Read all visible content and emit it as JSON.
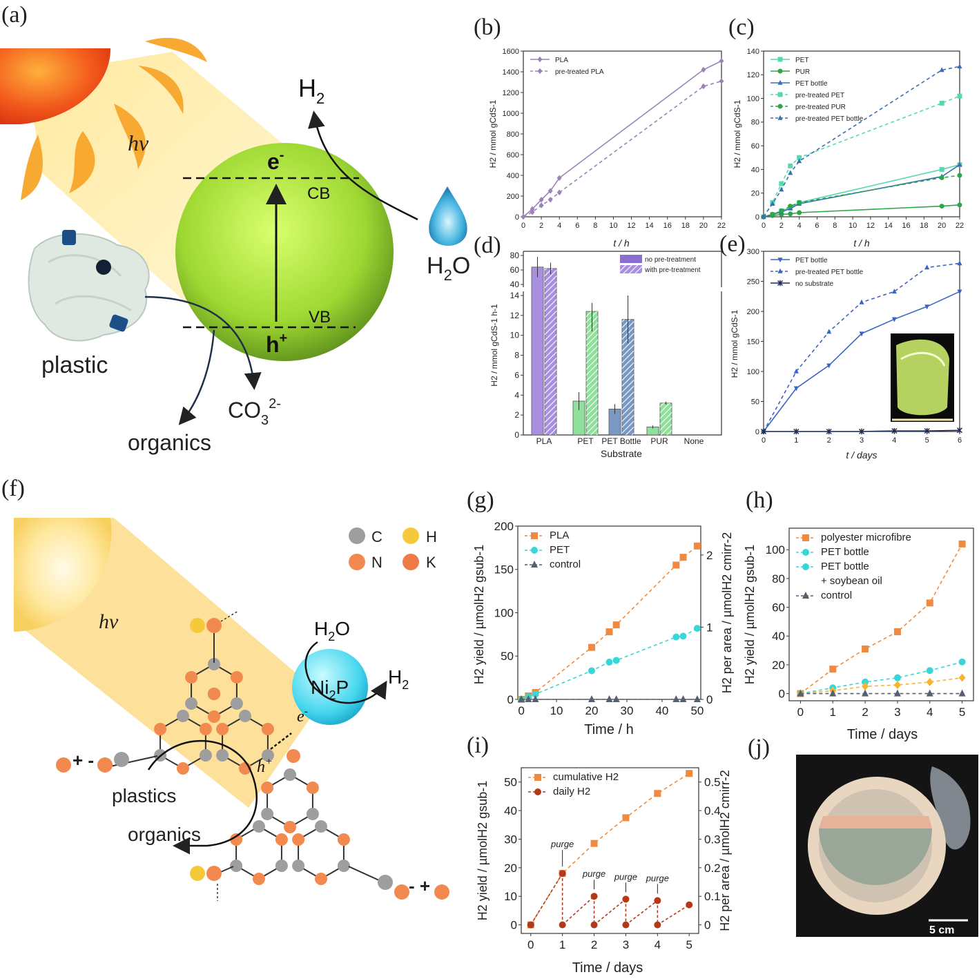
{
  "panels": {
    "a": {
      "label": "(a)",
      "hv": "hv",
      "e": "e",
      "e_sup": "-",
      "cb": "CB",
      "vb": "VB",
      "h": "h",
      "h_sup": "+",
      "h2": "H",
      "h2_sub": "2",
      "h2o": "H",
      "h2o_sub": "2",
      "h2o_o": "O",
      "plastic": "plastic",
      "co3": "CO",
      "co3_sub": "3",
      "co3_sup": "2-",
      "organics": "organics"
    },
    "f": {
      "label": "(f)",
      "hv": "hv",
      "legend": [
        {
          "letter": "C",
          "color": "#9e9e9e"
        },
        {
          "letter": "H",
          "color": "#f5c93a"
        },
        {
          "letter": "N",
          "color": "#f28a4f"
        },
        {
          "letter": "K",
          "color": "#ee7a46"
        }
      ],
      "h2o": "H",
      "h2o_sub": "2",
      "h2o_o": "O",
      "ni2p": "Ni",
      "ni2p_sub": "2",
      "ni2p_p": "P",
      "h2": "H",
      "h2_sub": "2",
      "e": "e",
      "e_sup": "-",
      "h": "h",
      "h_sup": "+",
      "plastics": "plastics",
      "organics": "organics",
      "plus_minus_left": "+ -",
      "minus_plus_right": "- +"
    },
    "j": {
      "label": "(j)",
      "scale": "5 cm"
    }
  },
  "chart_data": [
    {
      "panel": "b",
      "type": "line",
      "label": "(b)",
      "xlabel": "t / h",
      "ylabel": "H2 / mmol gCdS-1",
      "xlim": [
        0,
        22
      ],
      "ylim": [
        0,
        1600
      ],
      "xticks": [
        0,
        2,
        4,
        6,
        8,
        10,
        12,
        14,
        16,
        18,
        20,
        22
      ],
      "yticks": [
        0,
        200,
        400,
        600,
        800,
        1000,
        1200,
        1400,
        1600
      ],
      "series": [
        {
          "name": "PLA",
          "color": "#9b83b8",
          "dash": false,
          "marker": "diamond",
          "x": [
            0,
            1,
            2,
            3,
            4,
            20,
            22
          ],
          "y": [
            0,
            75,
            165,
            250,
            375,
            1420,
            1505
          ]
        },
        {
          "name": "pre-treated PLA",
          "color": "#9b83b8",
          "dash": true,
          "marker": "diamond",
          "x": [
            0,
            1,
            2,
            3,
            4,
            20,
            22
          ],
          "y": [
            0,
            45,
            110,
            165,
            235,
            1260,
            1310
          ]
        }
      ]
    },
    {
      "panel": "c",
      "type": "line",
      "label": "(c)",
      "xlabel": "t / h",
      "ylabel": "H2 / mmol gCdS-1",
      "xlim": [
        0,
        22
      ],
      "ylim": [
        0,
        140
      ],
      "xticks": [
        0,
        2,
        4,
        6,
        8,
        10,
        12,
        14,
        16,
        18,
        20,
        22
      ],
      "yticks": [
        0,
        20,
        40,
        60,
        80,
        100,
        120,
        140
      ],
      "series": [
        {
          "name": "PET",
          "color": "#56d8b2",
          "dash": false,
          "marker": "square",
          "x": [
            0,
            1,
            2,
            3,
            4,
            20,
            22
          ],
          "y": [
            0,
            2,
            5,
            8,
            12,
            40,
            44
          ]
        },
        {
          "name": "PUR",
          "color": "#2da64a",
          "dash": false,
          "marker": "circle",
          "x": [
            0,
            1,
            2,
            3,
            4,
            20,
            22
          ],
          "y": [
            0,
            1,
            2,
            2.5,
            3.5,
            9,
            10
          ]
        },
        {
          "name": "PET bottle",
          "color": "#3a6eb0",
          "dash": false,
          "marker": "triangle",
          "x": [
            0,
            1,
            2,
            3,
            4,
            20,
            22
          ],
          "y": [
            0,
            2,
            4,
            7,
            11,
            34,
            44
          ]
        },
        {
          "name": "pre-treated PET",
          "color": "#56d8b2",
          "dash": true,
          "marker": "square",
          "x": [
            0,
            1,
            2,
            3,
            4,
            20,
            22
          ],
          "y": [
            0,
            12,
            28,
            43,
            50,
            96,
            102
          ]
        },
        {
          "name": "pre-treated PUR",
          "color": "#2da64a",
          "dash": true,
          "marker": "circle",
          "x": [
            0,
            1,
            2,
            3,
            4,
            20,
            22
          ],
          "y": [
            0,
            2,
            5,
            9,
            12,
            33,
            35
          ]
        },
        {
          "name": "pre-treated PET bottle",
          "color": "#3a6eb0",
          "dash": true,
          "marker": "triangle",
          "x": [
            0,
            1,
            2,
            3,
            4,
            20,
            22
          ],
          "y": [
            0,
            11,
            23,
            37,
            47,
            124,
            127
          ]
        }
      ]
    },
    {
      "panel": "d",
      "type": "bar",
      "label": "(d)",
      "xlabel": "Substrate",
      "ylabel": "H2 / mmol gCdS-1 h-1",
      "categories": [
        "PLA",
        "PET",
        "PET Bottle",
        "PUR",
        "None"
      ],
      "yticks_low": [
        0,
        2,
        4,
        6,
        8,
        10,
        12,
        14
      ],
      "yticks_high": [
        40,
        60,
        80
      ],
      "series": [
        {
          "name": "no pre-treatment",
          "values": [
            64,
            3.4,
            2.6,
            0.8,
            0
          ],
          "errors": [
            14,
            0.9,
            0.5,
            0.15,
            0
          ]
        },
        {
          "name": "with pre-treatment",
          "values": [
            62,
            12.4,
            11.6,
            3.2,
            0
          ],
          "errors": [
            8,
            2.0,
            2.4,
            0.15,
            0
          ]
        }
      ],
      "colors": [
        "#a98fe0",
        "#8fe09a",
        "#7a98c4",
        "#8fe09a",
        "#cccccc"
      ]
    },
    {
      "panel": "e",
      "type": "line",
      "label": "(e)",
      "xlabel": "t / days",
      "ylabel": "H2 / mmol gCdS-1",
      "xlim": [
        0,
        6
      ],
      "ylim": [
        0,
        300
      ],
      "xticks": [
        0,
        1,
        2,
        3,
        4,
        5,
        6
      ],
      "yticks": [
        0,
        50,
        100,
        150,
        200,
        250,
        300
      ],
      "series": [
        {
          "name": "PET bottle",
          "color": "#3a63c4",
          "dash": false,
          "marker": "triangle-down",
          "x": [
            0,
            1,
            2,
            3,
            4,
            5,
            6
          ],
          "y": [
            0,
            72,
            110,
            163,
            187,
            208,
            233
          ]
        },
        {
          "name": "pre-treated PET bottle",
          "color": "#3a63c4",
          "dash": true,
          "marker": "triangle",
          "x": [
            0,
            1,
            2,
            3,
            4,
            5,
            6
          ],
          "y": [
            0,
            100,
            166,
            215,
            233,
            273,
            280
          ]
        },
        {
          "name": "no substrate",
          "color": "#1f2a55",
          "dash": false,
          "marker": "star",
          "x": [
            0,
            1,
            2,
            3,
            4,
            5,
            6
          ],
          "y": [
            0,
            0,
            0,
            0,
            1,
            1,
            2
          ]
        }
      ]
    },
    {
      "panel": "g",
      "type": "line",
      "label": "(g)",
      "xlabel": "Time / h",
      "ylabel": "H2 yield / µmolH2 gsub-1",
      "ylabel_right": "H2 per area / µmolH2 cmirr-2",
      "xlim": [
        -1,
        51
      ],
      "ylim": [
        0,
        200
      ],
      "ylim_right": [
        0,
        2.4
      ],
      "xticks": [
        0,
        10,
        20,
        30,
        40,
        50
      ],
      "yticks": [
        0,
        50,
        100,
        150,
        200
      ],
      "yticks_right": [
        0,
        1,
        2
      ],
      "series": [
        {
          "name": "PLA",
          "color": "#f08a3e",
          "marker": "square",
          "x": [
            0,
            2,
            4,
            20,
            25,
            27,
            44,
            46,
            50
          ],
          "y": [
            0,
            4,
            8,
            60,
            78,
            86,
            155,
            164,
            177
          ]
        },
        {
          "name": "PET",
          "color": "#38d6d6",
          "marker": "circle",
          "x": [
            0,
            2,
            4,
            20,
            25,
            27,
            44,
            46,
            50
          ],
          "y": [
            0,
            3,
            6,
            33,
            43,
            45,
            72,
            73,
            82
          ]
        },
        {
          "name": "control",
          "color": "#555f6e",
          "marker": "triangle",
          "x": [
            0,
            2,
            4,
            20,
            25,
            27,
            44,
            46,
            50
          ],
          "y": [
            0,
            0,
            0,
            0,
            0,
            0,
            0,
            0,
            0
          ]
        }
      ]
    },
    {
      "panel": "h",
      "type": "line",
      "label": "(h)",
      "xlabel": "Time / days",
      "ylabel": "H2 yield / µmolH2 gsub-1",
      "xlim": [
        -0.35,
        5.35
      ],
      "ylim": [
        -5,
        115
      ],
      "xticks": [
        0,
        1,
        2,
        3,
        4,
        5
      ],
      "yticks": [
        0,
        20,
        40,
        60,
        80,
        100
      ],
      "series": [
        {
          "name": "polyester microfibre",
          "color": "#f08a3e",
          "marker": "square",
          "x": [
            0,
            1,
            2,
            3,
            4,
            5
          ],
          "y": [
            0,
            17,
            31,
            43,
            63,
            104
          ]
        },
        {
          "name": "PET bottle",
          "color": "#38d6d6",
          "marker": "circle",
          "x": [
            0,
            1,
            2,
            3,
            4,
            5
          ],
          "y": [
            0,
            4,
            8,
            11,
            16,
            22
          ]
        },
        {
          "name": "PET bottle + soybean oil",
          "color": "#f7b52e",
          "marker": "diamond",
          "x": [
            0,
            1,
            2,
            3,
            4,
            5
          ],
          "y": [
            0,
            2,
            5,
            6,
            8,
            11
          ]
        },
        {
          "name": "control",
          "color": "#555f6e",
          "marker": "triangle",
          "x": [
            0,
            1,
            2,
            3,
            4,
            5
          ],
          "y": [
            0,
            0,
            0,
            0,
            0,
            0
          ]
        }
      ],
      "legend_lines": [
        "polyester microfibre",
        "PET bottle",
        "PET bottle",
        "+ soybean oil",
        "control"
      ]
    },
    {
      "panel": "i",
      "type": "line",
      "label": "(i)",
      "xlabel": "Time / days",
      "ylabel": "H2 yield / µmolH2 gsub-1",
      "ylabel_right": "H2 per area / µmolH2 cmirr-2",
      "xlim": [
        -0.3,
        5.3
      ],
      "ylim": [
        -3,
        55
      ],
      "ylim_right": [
        -0.03,
        0.55
      ],
      "xticks": [
        0,
        1,
        2,
        3,
        4,
        5
      ],
      "yticks": [
        0,
        10,
        20,
        30,
        40,
        50
      ],
      "yticks_right": [
        0.0,
        0.1,
        0.2,
        0.3,
        0.4,
        0.5
      ],
      "annotations": [
        "purge",
        "purge",
        "purge",
        "purge"
      ],
      "series": [
        {
          "name": "cumulative H2",
          "color": "#f08a3e",
          "marker": "square",
          "x": [
            0,
            1,
            2,
            3,
            4,
            5
          ],
          "y": [
            0,
            18,
            28.5,
            37.5,
            46,
            53
          ]
        },
        {
          "name": "daily H2",
          "color": "#b23a1a",
          "marker": "circle",
          "x": [
            0,
            1,
            1,
            2,
            2,
            3,
            3,
            4,
            4,
            5
          ],
          "y": [
            0,
            18,
            0,
            10,
            0,
            9,
            0,
            8.5,
            0,
            7
          ]
        }
      ]
    }
  ]
}
